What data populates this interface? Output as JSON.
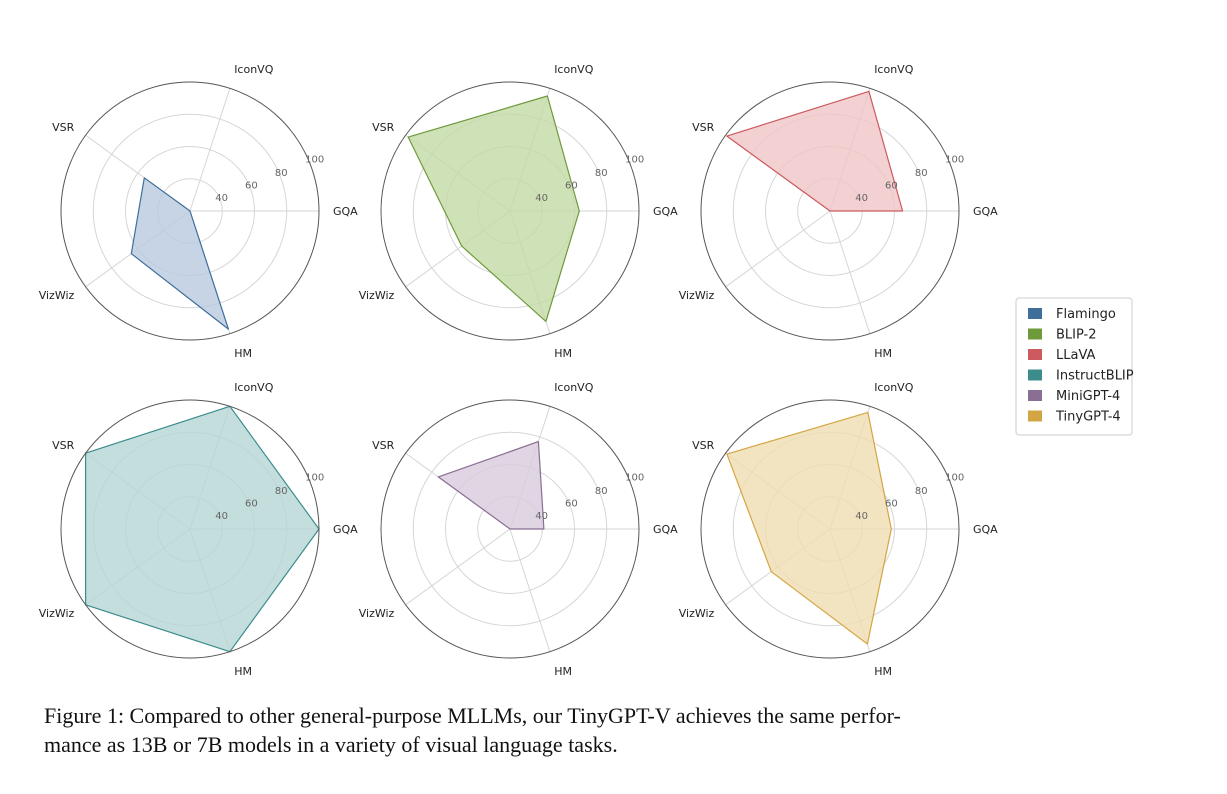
{
  "caption": "Figure 1: Compared to other general-purpose MLLMs, our TinyGPT-V achieves the same performance as 13B or 7B models in a variety of visual language tasks.",
  "caption_lines": [
    "Figure 1: Compared to other general-purpose MLLMs, our TinyGPT-V achieves the same perfor-",
    "mance as 13B or 7B models in a variety of visual language tasks."
  ],
  "chart_data": {
    "type": "radar",
    "axes": [
      "GQA",
      "IconVQ",
      "VSR",
      "VizWiz",
      "HM"
    ],
    "rlim": [
      20,
      100
    ],
    "rticks": [
      40,
      60,
      80,
      100
    ],
    "grid": true,
    "legend_position": "right",
    "series": [
      {
        "name": "Flamingo",
        "color": "#3f6e9a",
        "fill": "#b8c9de",
        "values": [
          0,
          0,
          55,
          65,
          97
        ]
      },
      {
        "name": "BLIP-2",
        "color": "#6e9a3b",
        "fill": "#c3d9a5",
        "values": [
          63,
          95,
          98,
          57,
          92
        ]
      },
      {
        "name": "LLaVA",
        "color": "#cc5a5e",
        "fill": "#f0c4c6",
        "values": [
          65,
          98,
          99,
          0,
          0
        ]
      },
      {
        "name": "InstructBLIP",
        "color": "#3c8c8c",
        "fill": "#b5d6d4",
        "values": [
          100,
          100,
          100,
          100,
          100
        ]
      },
      {
        "name": "MiniGPT-4",
        "color": "#8a6e94",
        "fill": "#d8cbdc",
        "values": [
          41,
          77,
          75,
          0,
          0
        ]
      },
      {
        "name": "TinyGPT-4",
        "color": "#d4a544",
        "fill": "#f0ddb2",
        "values": [
          58,
          96,
          99,
          65,
          95
        ]
      }
    ]
  }
}
